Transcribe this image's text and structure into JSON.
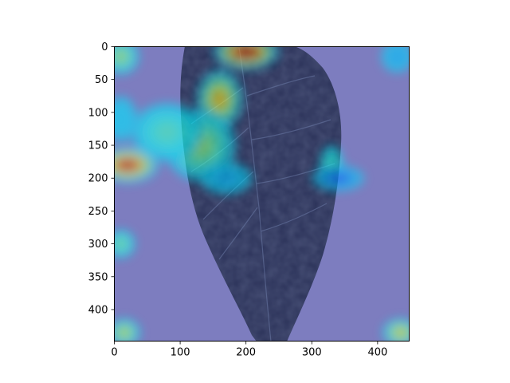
{
  "chart_data": {
    "type": "heatmap",
    "title": "",
    "xlabel": "",
    "ylabel": "",
    "xlim": [
      0,
      448
    ],
    "ylim": [
      448,
      0
    ],
    "y_inverted": true,
    "x_ticks": [
      0,
      100,
      200,
      300,
      400
    ],
    "y_ticks": [
      0,
      50,
      100,
      150,
      200,
      250,
      300,
      350,
      400
    ],
    "background_image": "leaf",
    "colormap": "jet",
    "overlay_alpha": 0.5,
    "colors": {
      "base_overlay": "#7d7dbf",
      "leaf_dark": "#2a3158",
      "leaf_vein": "#6b7aa6"
    },
    "hotspots": [
      {
        "x": 200,
        "y": 8,
        "sx": 50,
        "sy": 28,
        "intensity": 1.0
      },
      {
        "x": 160,
        "y": 80,
        "sx": 35,
        "sy": 45,
        "intensity": 0.72
      },
      {
        "x": 130,
        "y": 150,
        "sx": 55,
        "sy": 55,
        "intensity": 0.55
      },
      {
        "x": 20,
        "y": 180,
        "sx": 48,
        "sy": 28,
        "intensity": 0.95
      },
      {
        "x": 80,
        "y": 130,
        "sx": 55,
        "sy": 45,
        "intensity": 0.45
      },
      {
        "x": 10,
        "y": 15,
        "sx": 28,
        "sy": 28,
        "intensity": 0.55
      },
      {
        "x": 10,
        "y": 110,
        "sx": 25,
        "sy": 35,
        "intensity": 0.35
      },
      {
        "x": 10,
        "y": 300,
        "sx": 22,
        "sy": 22,
        "intensity": 0.5
      },
      {
        "x": 15,
        "y": 435,
        "sx": 25,
        "sy": 22,
        "intensity": 0.6
      },
      {
        "x": 435,
        "y": 435,
        "sx": 28,
        "sy": 22,
        "intensity": 0.65
      },
      {
        "x": 430,
        "y": 15,
        "sx": 25,
        "sy": 25,
        "intensity": 0.3
      },
      {
        "x": 330,
        "y": 180,
        "sx": 18,
        "sy": 30,
        "intensity": 0.45
      },
      {
        "x": 340,
        "y": 200,
        "sx": 40,
        "sy": 20,
        "intensity": 0.2
      },
      {
        "x": 170,
        "y": 200,
        "sx": 40,
        "sy": 25,
        "intensity": 0.3
      }
    ]
  }
}
